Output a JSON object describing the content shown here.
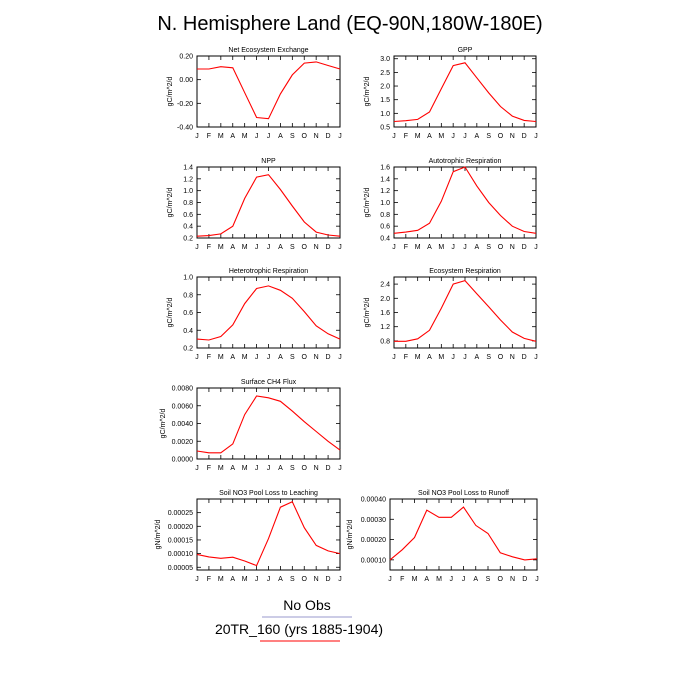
{
  "title": "N. Hemisphere Land (EQ-90N,180W-180E)",
  "legend": [
    {
      "label": "No Obs",
      "color": "#9999cc"
    },
    {
      "label": "20TR_160 (yrs 1885-1904)",
      "color": "#ff0000"
    }
  ],
  "colors": {
    "series": "#ff0000",
    "axis": "#000000"
  },
  "chart_data": [
    {
      "type": "line",
      "title": "Net Ecosystem Exchange",
      "ylabel": "gC/m^2/d",
      "categories": [
        "J",
        "F",
        "M",
        "A",
        "M",
        "J",
        "J",
        "A",
        "S",
        "O",
        "N",
        "D",
        "J"
      ],
      "ylim": [
        -0.4,
        0.2
      ],
      "yticks": [
        "0.20",
        "0.00",
        "-0.20",
        "-0.40"
      ],
      "ytick_values": [
        0.2,
        0.0,
        -0.2,
        -0.4
      ],
      "series": [
        {
          "values": [
            0.09,
            0.09,
            0.11,
            0.1,
            -0.11,
            -0.32,
            -0.33,
            -0.12,
            0.04,
            0.14,
            0.15,
            0.12,
            0.09
          ]
        }
      ]
    },
    {
      "type": "line",
      "title": "GPP",
      "ylabel": "gC/m^2/d",
      "categories": [
        "J",
        "F",
        "M",
        "A",
        "M",
        "J",
        "J",
        "A",
        "S",
        "O",
        "N",
        "D",
        "J"
      ],
      "ylim": [
        0.5,
        3.1
      ],
      "yticks": [
        "3.0",
        "2.5",
        "2.0",
        "1.5",
        "1.0",
        "0.5"
      ],
      "ytick_values": [
        3.0,
        2.5,
        2.0,
        1.5,
        1.0,
        0.5
      ],
      "series": [
        {
          "values": [
            0.7,
            0.73,
            0.78,
            1.05,
            1.9,
            2.75,
            2.85,
            2.3,
            1.75,
            1.25,
            0.9,
            0.74,
            0.7
          ]
        }
      ]
    },
    {
      "type": "line",
      "title": "NPP",
      "ylabel": "gC/m^2/d",
      "categories": [
        "J",
        "F",
        "M",
        "A",
        "M",
        "J",
        "J",
        "A",
        "S",
        "O",
        "N",
        "D",
        "J"
      ],
      "ylim": [
        0.2,
        1.4
      ],
      "yticks": [
        "1.4",
        "1.2",
        "1.0",
        "0.8",
        "0.6",
        "0.4",
        "0.2"
      ],
      "ytick_values": [
        1.4,
        1.2,
        1.0,
        0.8,
        0.6,
        0.4,
        0.2
      ],
      "series": [
        {
          "values": [
            0.23,
            0.24,
            0.27,
            0.4,
            0.87,
            1.23,
            1.27,
            1.02,
            0.74,
            0.47,
            0.3,
            0.25,
            0.23
          ]
        }
      ]
    },
    {
      "type": "line",
      "title": "Autotrophic Respiration",
      "ylabel": "gC/m^2/d",
      "categories": [
        "J",
        "F",
        "M",
        "A",
        "M",
        "J",
        "J",
        "A",
        "S",
        "O",
        "N",
        "D",
        "J"
      ],
      "ylim": [
        0.4,
        1.6
      ],
      "yticks": [
        "1.6",
        "1.4",
        "1.2",
        "1.0",
        "0.8",
        "0.6",
        "0.4"
      ],
      "ytick_values": [
        1.6,
        1.4,
        1.2,
        1.0,
        0.8,
        0.6,
        0.4
      ],
      "series": [
        {
          "values": [
            0.48,
            0.5,
            0.53,
            0.65,
            1.02,
            1.52,
            1.6,
            1.28,
            1.0,
            0.78,
            0.6,
            0.51,
            0.48
          ]
        }
      ]
    },
    {
      "type": "line",
      "title": "Heterotrophic Respiration",
      "ylabel": "gC/m^2/d",
      "categories": [
        "J",
        "F",
        "M",
        "A",
        "M",
        "J",
        "J",
        "A",
        "S",
        "O",
        "N",
        "D",
        "J"
      ],
      "ylim": [
        0.2,
        1.0
      ],
      "yticks": [
        "1.0",
        "0.8",
        "0.6",
        "0.4",
        "0.2"
      ],
      "ytick_values": [
        1.0,
        0.8,
        0.6,
        0.4,
        0.2
      ],
      "series": [
        {
          "values": [
            0.3,
            0.29,
            0.33,
            0.46,
            0.7,
            0.87,
            0.9,
            0.85,
            0.76,
            0.61,
            0.45,
            0.36,
            0.3
          ]
        }
      ]
    },
    {
      "type": "line",
      "title": "Ecosystem Respiration",
      "ylabel": "gC/m^2/d",
      "categories": [
        "J",
        "F",
        "M",
        "A",
        "M",
        "J",
        "J",
        "A",
        "S",
        "O",
        "N",
        "D",
        "J"
      ],
      "ylim": [
        0.6,
        2.6
      ],
      "yticks": [
        "2.4",
        "2.0",
        "1.6",
        "1.2",
        "0.8"
      ],
      "ytick_values": [
        2.4,
        2.0,
        1.6,
        1.2,
        0.8
      ],
      "series": [
        {
          "values": [
            0.79,
            0.79,
            0.86,
            1.1,
            1.72,
            2.4,
            2.5,
            2.13,
            1.76,
            1.39,
            1.05,
            0.87,
            0.79
          ]
        }
      ]
    },
    {
      "type": "line",
      "title": "Surface CH4 Flux",
      "ylabel": "gC/m^2/d",
      "categories": [
        "J",
        "F",
        "M",
        "A",
        "M",
        "J",
        "J",
        "A",
        "S",
        "O",
        "N",
        "D",
        "J"
      ],
      "ylim": [
        0.0,
        0.008
      ],
      "yticks": [
        "0.0080",
        "0.0060",
        "0.0040",
        "0.0020",
        "0.0000"
      ],
      "ytick_values": [
        0.008,
        0.006,
        0.004,
        0.002,
        0.0
      ],
      "series": [
        {
          "values": [
            0.0009,
            0.0007,
            0.0007,
            0.0017,
            0.005,
            0.0071,
            0.0069,
            0.0065,
            0.0054,
            0.0042,
            0.0031,
            0.002,
            0.001
          ]
        }
      ]
    },
    {
      "type": "line",
      "title": "Soil NO3 Pool Loss to Leaching",
      "ylabel": "gN/m^2/d",
      "categories": [
        "J",
        "F",
        "M",
        "A",
        "M",
        "J",
        "J",
        "A",
        "S",
        "O",
        "N",
        "D",
        "J"
      ],
      "ylim": [
        4e-05,
        0.0003
      ],
      "yticks": [
        "0.00025",
        "0.00020",
        "0.00015",
        "0.00010",
        "0.00005"
      ],
      "ytick_values": [
        0.00025,
        0.0002,
        0.00015,
        0.0001,
        5e-05
      ],
      "series": [
        {
          "values": [
            9.7e-05,
            8.8e-05,
            8.3e-05,
            8.7e-05,
            7.3e-05,
            5.6e-05,
            0.000155,
            0.00027,
            0.00029,
            0.000195,
            0.00013,
            0.00011,
            0.0001
          ]
        }
      ]
    },
    {
      "type": "line",
      "title": "Soil NO3 Pool Loss to Runoff",
      "ylabel": "gN/m^2/d",
      "categories": [
        "J",
        "F",
        "M",
        "A",
        "M",
        "J",
        "J",
        "A",
        "S",
        "O",
        "N",
        "D",
        "J"
      ],
      "ylim": [
        5e-05,
        0.0004
      ],
      "yticks": [
        "0.00040",
        "0.00030",
        "0.00020",
        "0.00010"
      ],
      "ytick_values": [
        0.0004,
        0.0003,
        0.0002,
        0.0001
      ],
      "series": [
        {
          "values": [
            0.0001,
            0.00015,
            0.00021,
            0.000345,
            0.00031,
            0.00031,
            0.00036,
            0.00027,
            0.00023,
            0.000135,
            0.000115,
            0.0001,
            0.000105
          ]
        }
      ]
    }
  ]
}
